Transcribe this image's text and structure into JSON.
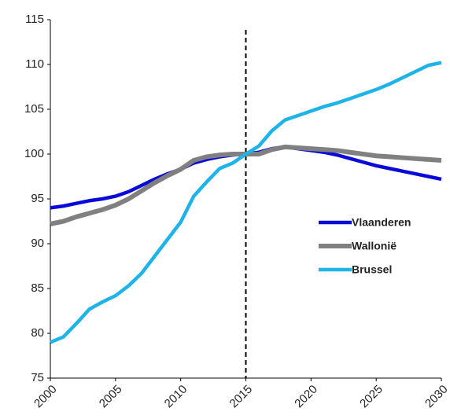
{
  "chart_data": {
    "type": "line",
    "x": [
      2000,
      2001,
      2002,
      2003,
      2004,
      2005,
      2006,
      2007,
      2008,
      2009,
      2010,
      2011,
      2012,
      2013,
      2014,
      2015,
      2016,
      2017,
      2018,
      2019,
      2020,
      2021,
      2022,
      2023,
      2024,
      2025,
      2026,
      2027,
      2028,
      2029,
      2030
    ],
    "series": [
      {
        "name": "Vlaanderen",
        "color": "#0a0ad8",
        "values": [
          94.0,
          94.2,
          94.5,
          94.8,
          95.0,
          95.3,
          95.8,
          96.5,
          97.2,
          97.8,
          98.3,
          99.0,
          99.4,
          99.7,
          99.9,
          100.0,
          100.2,
          100.6,
          100.8,
          100.6,
          100.4,
          100.2,
          99.9,
          99.5,
          99.1,
          98.7,
          98.4,
          98.1,
          97.8,
          97.5,
          97.2
        ]
      },
      {
        "name": "Wallonië",
        "color": "#808080",
        "values": [
          92.2,
          92.5,
          93.0,
          93.4,
          93.8,
          94.3,
          95.0,
          95.9,
          96.8,
          97.6,
          98.3,
          99.3,
          99.7,
          99.9,
          100.0,
          100.0,
          100.0,
          100.5,
          100.8,
          100.7,
          100.6,
          100.5,
          100.4,
          100.2,
          100.0,
          99.8,
          99.7,
          99.6,
          99.5,
          99.4,
          99.3
        ]
      },
      {
        "name": "Brussel",
        "color": "#1fb4e8",
        "values": [
          79.0,
          79.6,
          81.1,
          82.7,
          83.5,
          84.2,
          85.3,
          86.7,
          88.6,
          90.5,
          92.4,
          95.3,
          96.9,
          98.4,
          99.0,
          100.0,
          100.9,
          102.6,
          103.8,
          104.3,
          104.8,
          105.3,
          105.7,
          106.2,
          106.7,
          107.2,
          107.8,
          108.5,
          109.2,
          109.9,
          110.2
        ]
      }
    ],
    "xlim": [
      2000,
      2030
    ],
    "xticks": [
      2000,
      2005,
      2010,
      2015,
      2020,
      2025,
      2030
    ],
    "ylim": [
      75,
      115
    ],
    "yticks": [
      75,
      80,
      85,
      90,
      95,
      100,
      105,
      110,
      115
    ],
    "vertical_line_x": 2015,
    "grid": false,
    "legend": "center right"
  }
}
